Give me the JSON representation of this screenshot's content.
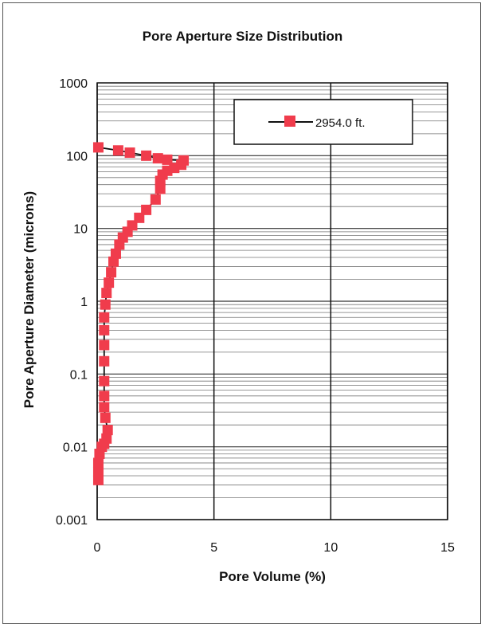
{
  "chart_data": {
    "type": "scatter",
    "title": "Pore Aperture Size Distribution",
    "xlabel": "Pore Volume (%)",
    "ylabel": "Pore Aperture Diameter (microns)",
    "xlim": [
      0,
      15
    ],
    "ylim": [
      0.001,
      1000
    ],
    "yscale": "log",
    "xticks": [
      "0",
      "5",
      "10",
      "15"
    ],
    "yticks": [
      "1000",
      "100",
      "10",
      "1",
      "0.1",
      "0.01",
      "0.001"
    ],
    "grid": true,
    "legend_position": "top-right",
    "colors": {
      "series": "#f03c4c",
      "line": "#111111"
    },
    "series": [
      {
        "name": "2954.0 ft.",
        "points": [
          [
            0.05,
            130
          ],
          [
            0.9,
            118
          ],
          [
            1.4,
            110
          ],
          [
            2.1,
            100
          ],
          [
            2.6,
            92
          ],
          [
            3.0,
            88
          ],
          [
            3.7,
            86
          ],
          [
            3.6,
            75
          ],
          [
            3.3,
            68
          ],
          [
            3.0,
            62
          ],
          [
            2.8,
            55
          ],
          [
            2.7,
            45
          ],
          [
            2.7,
            35
          ],
          [
            2.5,
            25
          ],
          [
            2.1,
            18
          ],
          [
            1.8,
            14
          ],
          [
            1.5,
            11
          ],
          [
            1.3,
            9
          ],
          [
            1.1,
            7.5
          ],
          [
            0.95,
            6
          ],
          [
            0.8,
            4.5
          ],
          [
            0.7,
            3.5
          ],
          [
            0.6,
            2.5
          ],
          [
            0.5,
            1.8
          ],
          [
            0.4,
            1.3
          ],
          [
            0.35,
            0.9
          ],
          [
            0.3,
            0.6
          ],
          [
            0.3,
            0.4
          ],
          [
            0.3,
            0.25
          ],
          [
            0.3,
            0.15
          ],
          [
            0.3,
            0.08
          ],
          [
            0.3,
            0.05
          ],
          [
            0.3,
            0.035
          ],
          [
            0.35,
            0.025
          ],
          [
            0.45,
            0.017
          ],
          [
            0.4,
            0.013
          ],
          [
            0.3,
            0.011
          ],
          [
            0.2,
            0.01
          ],
          [
            0.1,
            0.008
          ],
          [
            0.05,
            0.006
          ],
          [
            0.05,
            0.0045
          ],
          [
            0.05,
            0.0035
          ]
        ]
      }
    ]
  }
}
